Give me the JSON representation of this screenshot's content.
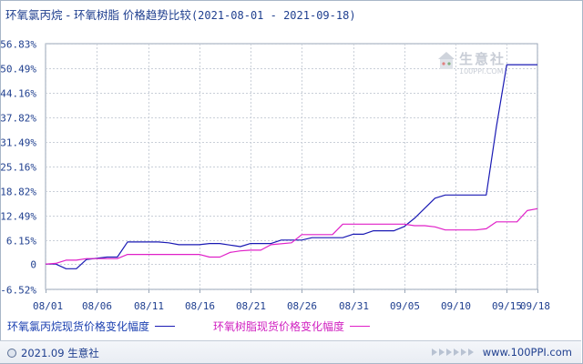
{
  "chart_data": {
    "type": "line",
    "title": "环氧氯丙烷 - 环氧树脂 价格趋势比较",
    "date_range": "(2021-08-01 - 2021-09-18)",
    "y_ticks": [
      "56.83%",
      "50.49%",
      "44.16%",
      "37.82%",
      "31.49%",
      "25.16%",
      "18.82%",
      "12.49%",
      "6.15%",
      "0",
      "-6.52%"
    ],
    "y_tick_values": [
      56.83,
      50.49,
      44.16,
      37.82,
      31.49,
      25.16,
      18.82,
      12.49,
      6.15,
      0,
      -6.52
    ],
    "ylim": [
      -6.52,
      56.83
    ],
    "x_ticks": [
      "08/01",
      "08/06",
      "08/11",
      "08/16",
      "08/21",
      "08/26",
      "08/31",
      "09/05",
      "09/10",
      "09/15",
      "09/18"
    ],
    "grid": true,
    "series": [
      {
        "name": "环氧氯丙烷现货价格变化幅度",
        "color": "#1a1ab4",
        "points": [
          [
            "2021-08-01",
            0
          ],
          [
            "2021-08-02",
            0
          ],
          [
            "2021-08-03",
            -1.2
          ],
          [
            "2021-08-04",
            -1.2
          ],
          [
            "2021-08-05",
            1.2
          ],
          [
            "2021-08-07",
            1.8
          ],
          [
            "2021-08-08",
            1.8
          ],
          [
            "2021-08-09",
            5.7
          ],
          [
            "2021-08-12",
            5.7
          ],
          [
            "2021-08-13",
            5.5
          ],
          [
            "2021-08-14",
            5.0
          ],
          [
            "2021-08-16",
            5.0
          ],
          [
            "2021-08-17",
            5.3
          ],
          [
            "2021-08-18",
            5.3
          ],
          [
            "2021-08-20",
            4.5
          ],
          [
            "2021-08-21",
            5.3
          ],
          [
            "2021-08-23",
            5.3
          ],
          [
            "2021-08-24",
            6.2
          ],
          [
            "2021-08-26",
            6.2
          ],
          [
            "2021-08-27",
            6.8
          ],
          [
            "2021-08-30",
            6.8
          ],
          [
            "2021-08-31",
            7.7
          ],
          [
            "2021-09-01",
            7.7
          ],
          [
            "2021-09-02",
            8.6
          ],
          [
            "2021-09-04",
            8.6
          ],
          [
            "2021-09-05",
            9.7
          ],
          [
            "2021-09-06",
            11.8
          ],
          [
            "2021-09-08",
            17.0
          ],
          [
            "2021-09-09",
            17.8
          ],
          [
            "2021-09-13",
            17.8
          ],
          [
            "2021-09-14",
            35.5
          ],
          [
            "2021-09-15",
            51.4
          ],
          [
            "2021-09-18",
            51.4
          ]
        ]
      },
      {
        "name": "环氧树脂现货价格变化幅度",
        "color": "#e020c8",
        "points": [
          [
            "2021-08-01",
            0
          ],
          [
            "2021-08-02",
            0.2
          ],
          [
            "2021-08-03",
            1.0
          ],
          [
            "2021-08-04",
            1.0
          ],
          [
            "2021-08-05",
            1.4
          ],
          [
            "2021-08-08",
            1.4
          ],
          [
            "2021-08-09",
            2.5
          ],
          [
            "2021-08-16",
            2.5
          ],
          [
            "2021-08-17",
            1.8
          ],
          [
            "2021-08-18",
            1.8
          ],
          [
            "2021-08-19",
            3.0
          ],
          [
            "2021-08-20",
            3.4
          ],
          [
            "2021-08-21",
            3.6
          ],
          [
            "2021-08-22",
            3.6
          ],
          [
            "2021-08-23",
            5.0
          ],
          [
            "2021-08-25",
            5.5
          ],
          [
            "2021-08-26",
            7.6
          ],
          [
            "2021-08-29",
            7.6
          ],
          [
            "2021-08-30",
            10.3
          ],
          [
            "2021-09-05",
            10.3
          ],
          [
            "2021-09-06",
            9.9
          ],
          [
            "2021-09-07",
            9.9
          ],
          [
            "2021-09-08",
            9.6
          ],
          [
            "2021-09-09",
            8.8
          ],
          [
            "2021-09-12",
            8.8
          ],
          [
            "2021-09-13",
            9.1
          ],
          [
            "2021-09-14",
            10.9
          ],
          [
            "2021-09-16",
            10.9
          ],
          [
            "2021-09-17",
            13.8
          ],
          [
            "2021-09-18",
            14.3
          ]
        ]
      }
    ]
  },
  "watermark": {
    "text": "生意社",
    "url": "100PPI.COM"
  },
  "footer": {
    "left": "2021.09 生意社",
    "right": "www.100PPI.com"
  }
}
